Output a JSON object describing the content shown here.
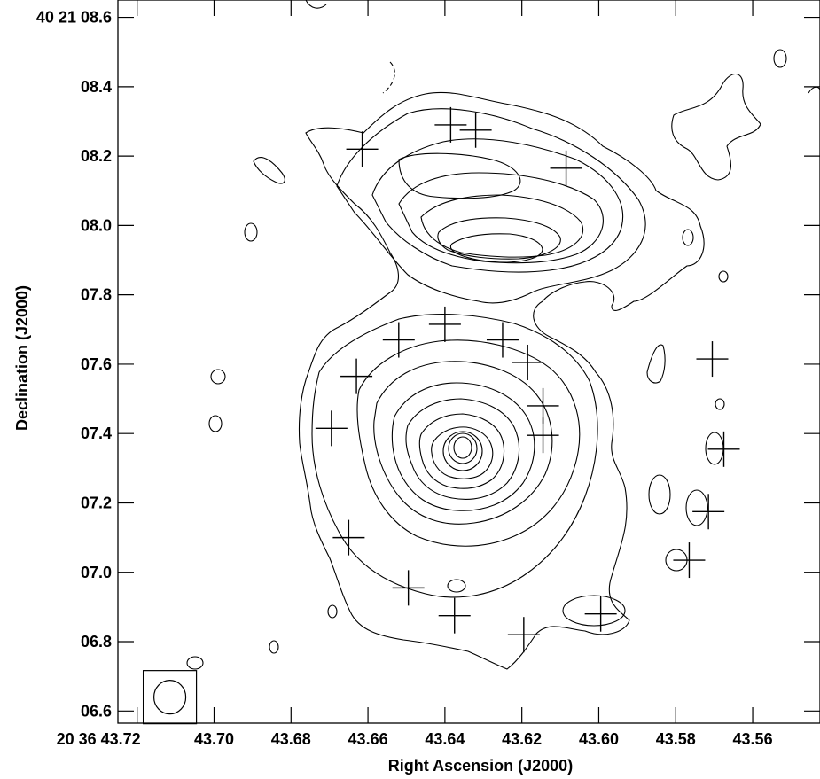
{
  "chart_data": {
    "type": "contour",
    "xlabel": "Right Ascension (J2000)",
    "ylabel": "Declination (J2000)",
    "x_ticks": [
      {
        "value": 43.72,
        "label": "20 36 43.72"
      },
      {
        "value": 43.7,
        "label": "43.70"
      },
      {
        "value": 43.68,
        "label": "43.68"
      },
      {
        "value": 43.66,
        "label": "43.66"
      },
      {
        "value": 43.64,
        "label": "43.64"
      },
      {
        "value": 43.62,
        "label": "43.62"
      },
      {
        "value": 43.6,
        "label": "43.60"
      },
      {
        "value": 43.58,
        "label": "43.58"
      },
      {
        "value": 43.56,
        "label": "43.56"
      }
    ],
    "y_ticks": [
      {
        "value": 8.6,
        "label": "40 21 08.6"
      },
      {
        "value": 8.4,
        "label": "08.4"
      },
      {
        "value": 8.2,
        "label": "08.2"
      },
      {
        "value": 8.0,
        "label": "08.0"
      },
      {
        "value": 7.8,
        "label": "07.8"
      },
      {
        "value": 7.6,
        "label": "07.6"
      },
      {
        "value": 7.4,
        "label": "07.4"
      },
      {
        "value": 7.2,
        "label": "07.2"
      },
      {
        "value": 7.0,
        "label": "07.0"
      },
      {
        "value": 6.8,
        "label": "06.8"
      },
      {
        "value": 6.6,
        "label": "06.6"
      }
    ],
    "xlim": [
      43.725,
      43.5425
    ],
    "ylim": [
      6.565,
      8.65
    ],
    "x_reversed": true,
    "peaks": [
      {
        "name": "southern-core",
        "ra": 43.6295,
        "dec": 7.375,
        "levels": 16
      },
      {
        "name": "northern-lobe",
        "ra": 43.621,
        "dec": 7.93,
        "levels": 12
      }
    ],
    "crosses": [
      {
        "ra": 43.6385,
        "dec": 8.29
      },
      {
        "ra": 43.632,
        "dec": 8.275
      },
      {
        "ra": 43.6615,
        "dec": 8.22
      },
      {
        "ra": 43.6085,
        "dec": 8.165
      },
      {
        "ra": 43.64,
        "dec": 7.715
      },
      {
        "ra": 43.652,
        "dec": 7.67
      },
      {
        "ra": 43.625,
        "dec": 7.67
      },
      {
        "ra": 43.6185,
        "dec": 7.605
      },
      {
        "ra": 43.663,
        "dec": 7.565
      },
      {
        "ra": 43.5705,
        "dec": 7.615
      },
      {
        "ra": 43.6145,
        "dec": 7.48
      },
      {
        "ra": 43.6145,
        "dec": 7.395
      },
      {
        "ra": 43.6695,
        "dec": 7.415
      },
      {
        "ra": 43.5675,
        "dec": 7.355
      },
      {
        "ra": 43.5715,
        "dec": 7.175
      },
      {
        "ra": 43.665,
        "dec": 7.1
      },
      {
        "ra": 43.5765,
        "dec": 7.035
      },
      {
        "ra": 43.6495,
        "dec": 6.955
      },
      {
        "ra": 43.6375,
        "dec": 6.875
      },
      {
        "ra": 43.6195,
        "dec": 6.82
      },
      {
        "ra": 43.5995,
        "dec": 6.88
      }
    ],
    "beam": {
      "ra": 43.7115,
      "dec": 6.64
    },
    "grid": false,
    "legend": "none"
  }
}
